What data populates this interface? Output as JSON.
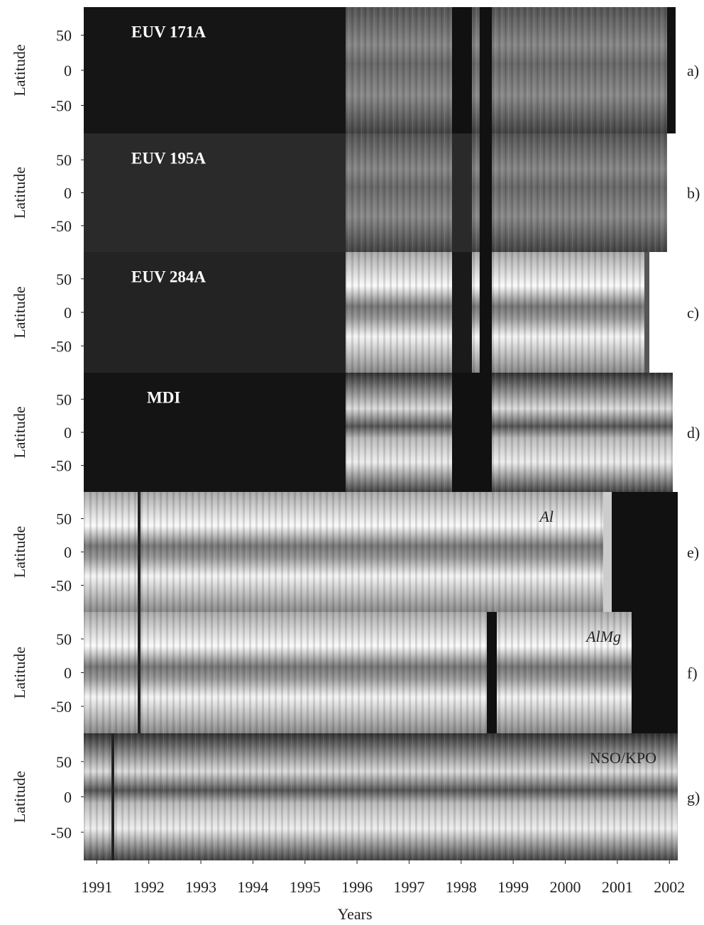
{
  "panels": [
    {
      "label": "EUV 171A",
      "tag": "a)",
      "ylabel": "Latitude",
      "yticks": [
        50,
        0,
        -50
      ],
      "ylim": [
        -90,
        90
      ]
    },
    {
      "label": "EUV 195A",
      "tag": "b)",
      "ylabel": "Latitude",
      "yticks": [
        50,
        0,
        -50
      ],
      "ylim": [
        -90,
        90
      ]
    },
    {
      "label": "EUV 284A",
      "tag": "c)",
      "ylabel": "Latitude",
      "yticks": [
        50,
        0,
        -50
      ],
      "ylim": [
        -90,
        90
      ]
    },
    {
      "label": "MDI",
      "tag": "d)",
      "ylabel": "Latitude",
      "yticks": [
        50,
        0,
        -50
      ],
      "ylim": [
        -90,
        90
      ]
    },
    {
      "label": "Al",
      "tag": "e)",
      "ylabel": "Latitude",
      "yticks": [
        50,
        0,
        -50
      ],
      "ylim": [
        -90,
        90
      ]
    },
    {
      "label": "AlMg",
      "tag": "f)",
      "ylabel": "Latitude",
      "yticks": [
        50,
        0,
        -50
      ],
      "ylim": [
        -90,
        90
      ]
    },
    {
      "label": "NSO/KPO",
      "tag": "g)",
      "ylabel": "Latitude",
      "yticks": [
        50,
        0,
        -50
      ],
      "ylim": [
        -90,
        90
      ]
    }
  ],
  "xaxis": {
    "label": "Years",
    "ticks": [
      1991,
      1992,
      1993,
      1994,
      1995,
      1996,
      1997,
      1998,
      1999,
      2000,
      2001,
      2002
    ],
    "xlim": [
      1990.75,
      2002.12
    ]
  }
}
